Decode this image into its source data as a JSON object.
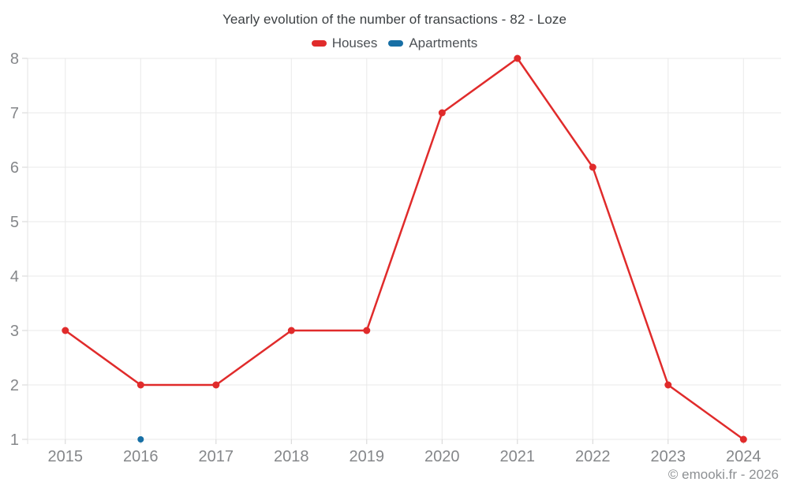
{
  "chart_data": {
    "type": "line",
    "title": "Yearly evolution of the number of transactions - 82 - Loze",
    "categories": [
      "2015",
      "2016",
      "2017",
      "2018",
      "2019",
      "2020",
      "2021",
      "2022",
      "2023",
      "2024"
    ],
    "series": [
      {
        "name": "Houses",
        "color": "#e02b2b",
        "values": [
          3,
          2,
          2,
          3,
          3,
          7,
          8,
          6,
          2,
          1
        ]
      },
      {
        "name": "Apartments",
        "color": "#176fa5",
        "values": [
          null,
          1,
          null,
          null,
          null,
          null,
          null,
          null,
          null,
          null
        ]
      }
    ],
    "xlabel": "",
    "ylabel": "",
    "ylim": [
      1,
      8
    ],
    "y_ticks": [
      1,
      2,
      3,
      4,
      5,
      6,
      7,
      8
    ],
    "grid": true,
    "legend_position": "top"
  },
  "footer": {
    "watermark": "© emooki.fr - 2026"
  },
  "colors": {
    "grid": "#e9e9e9",
    "axis_line": "#e3e3e3",
    "tick": "#d4d4d4",
    "axis_text": "#85878a",
    "title_text": "#3c4043",
    "legend_text": "#4d5156",
    "watermark_text": "#8d9093",
    "background": "#ffffff"
  }
}
